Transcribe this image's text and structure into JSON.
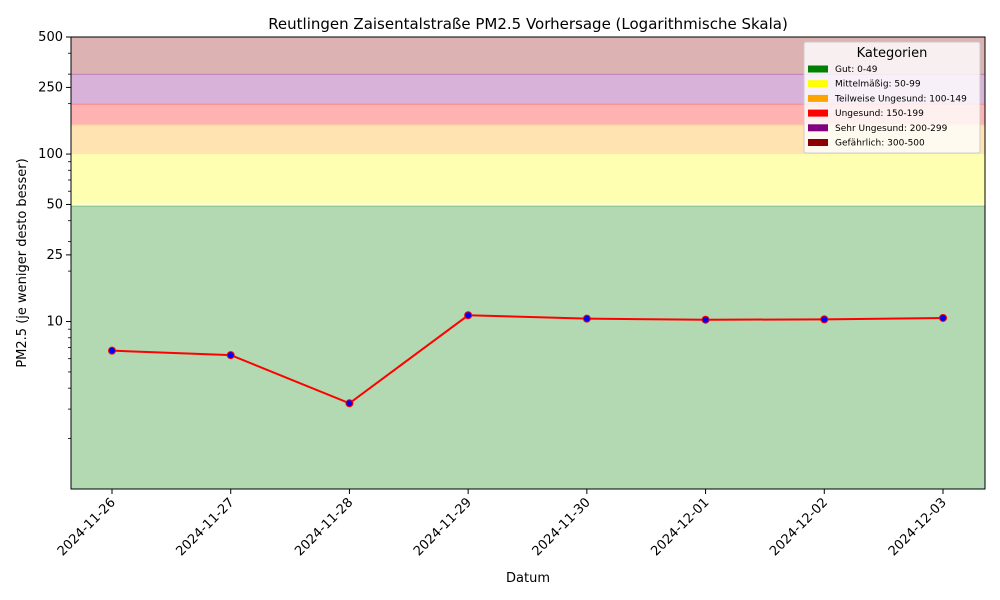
{
  "chart_data": {
    "type": "line",
    "title": "Reutlingen Zaisentalstraße PM2.5 Vorhersage (Logarithmische Skala)",
    "xlabel": "Datum",
    "ylabel": "PM2.5 (je weniger desto besser)",
    "yscale": "log",
    "ylim": [
      1,
      500
    ],
    "yticks": [
      10,
      25,
      50,
      100,
      250,
      500
    ],
    "x": [
      "2024-11-26",
      "2024-11-27",
      "2024-11-28",
      "2024-11-29",
      "2024-11-30",
      "2024-12-01",
      "2024-12-02",
      "2024-12-03"
    ],
    "series": [
      {
        "values": [
          6.7,
          6.3,
          3.25,
          10.9,
          10.4,
          10.25,
          10.3,
          10.5
        ],
        "color": "#ff0000",
        "marker_color": "#0000ff"
      }
    ],
    "bands": [
      {
        "from": 1,
        "to": 49,
        "color": "#008000"
      },
      {
        "from": 50,
        "to": 99,
        "color": "#ffff00"
      },
      {
        "from": 100,
        "to": 149,
        "color": "#ffa500"
      },
      {
        "from": 150,
        "to": 199,
        "color": "#ff0000"
      },
      {
        "from": 200,
        "to": 299,
        "color": "#800080"
      },
      {
        "from": 300,
        "to": 500,
        "color": "#8b0000"
      }
    ],
    "legend": {
      "title": "Kategorien",
      "position": "top-right",
      "entries": [
        {
          "label": "Gut: 0-49",
          "color": "#008000"
        },
        {
          "label": "Mittelmäßig: 50-99",
          "color": "#ffff00"
        },
        {
          "label": "Teilweise Ungesund: 100-149",
          "color": "#ffa500"
        },
        {
          "label": "Ungesund: 150-199",
          "color": "#ff0000"
        },
        {
          "label": "Sehr Ungesund: 200-299",
          "color": "#800080"
        },
        {
          "label": "Gefährlich: 300-500",
          "color": "#8b0000"
        }
      ]
    },
    "grid": false
  }
}
